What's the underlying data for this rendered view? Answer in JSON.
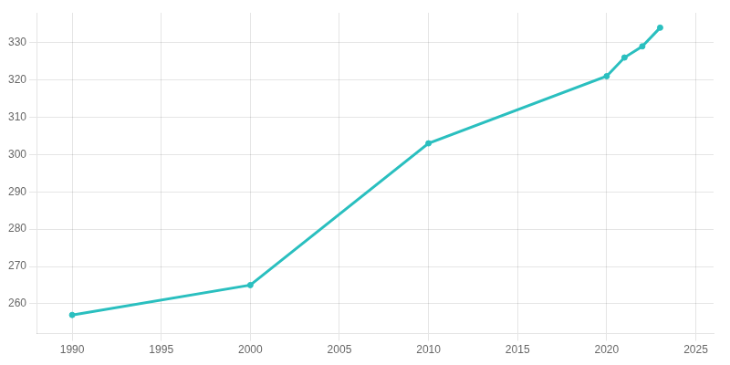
{
  "chart_data": {
    "type": "line",
    "x": [
      1990,
      2000,
      2010,
      2020,
      2021,
      2022,
      2023
    ],
    "values": [
      257,
      265,
      303,
      321,
      326,
      329,
      334
    ],
    "color": "#2ABFBF",
    "marker": "circle",
    "xlim": [
      1988,
      2026
    ],
    "xticks": [
      1990,
      1995,
      2000,
      2005,
      2010,
      2015,
      2020,
      2025
    ],
    "ylim": [
      252,
      338
    ],
    "yticks": [
      260,
      270,
      280,
      290,
      300,
      310,
      320,
      330
    ],
    "grid": true
  }
}
